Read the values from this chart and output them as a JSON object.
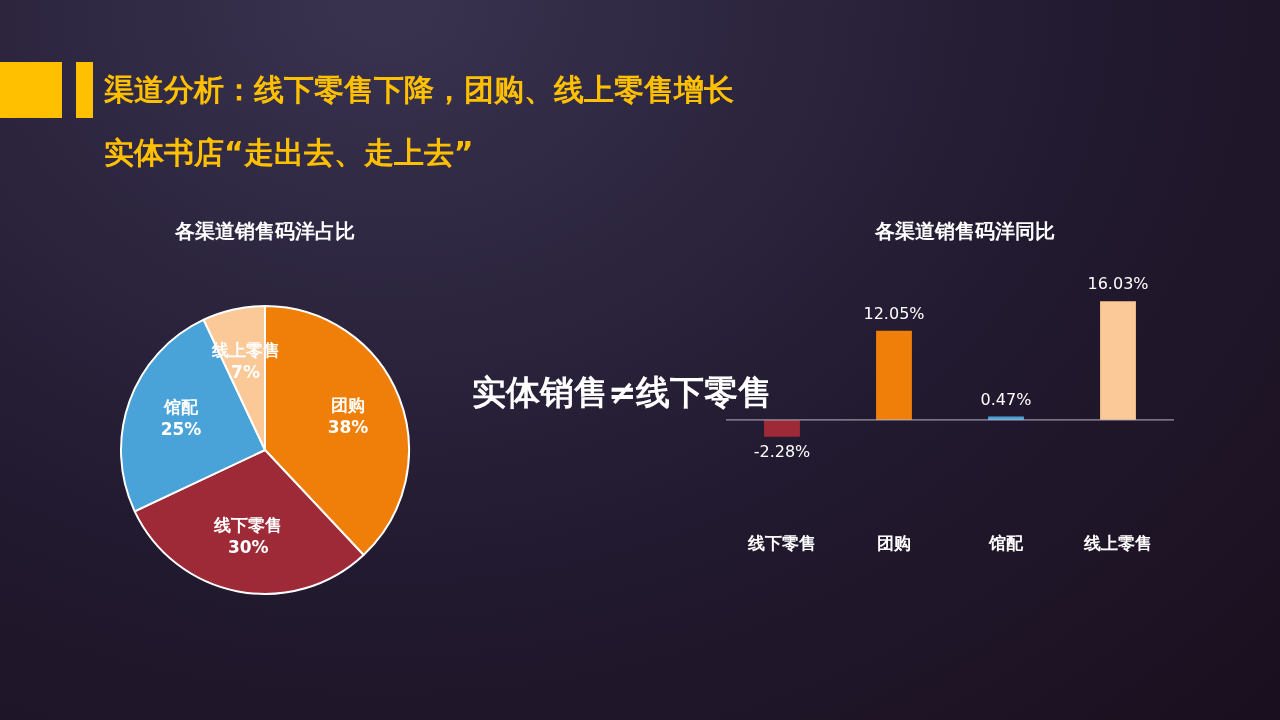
{
  "chart_data": [
    {
      "type": "other",
      "title": "渠道分析：线下零售下降，团购、线上零售增长",
      "subtitle": "实体书店“走出去、走上去”",
      "annotations": [
        "实体销售≠线下零售"
      ]
    },
    {
      "type": "pie",
      "title": "各渠道销售码洋占比",
      "categories": [
        "团购",
        "线下零售",
        "馆配",
        "线上零售"
      ],
      "values": [
        38,
        30,
        25,
        7
      ],
      "value_labels": [
        "38%",
        "30%",
        "25%",
        "7%"
      ],
      "colors": [
        "#f07f09",
        "#9e2a37",
        "#4aa3d8",
        "#fbc897"
      ],
      "legend": false
    },
    {
      "type": "bar",
      "title": "各渠道销售码洋同比",
      "categories": [
        "线下零售",
        "团购",
        "馆配",
        "线上零售"
      ],
      "values": [
        -2.28,
        12.05,
        0.47,
        16.03
      ],
      "value_labels": [
        "-2.28%",
        "12.05%",
        "0.47%",
        "16.03%"
      ],
      "colors": [
        "#9e2a37",
        "#f07f09",
        "#4aa3d8",
        "#fbc897"
      ],
      "tick_labels": "x",
      "grid": false,
      "legend": false
    }
  ]
}
